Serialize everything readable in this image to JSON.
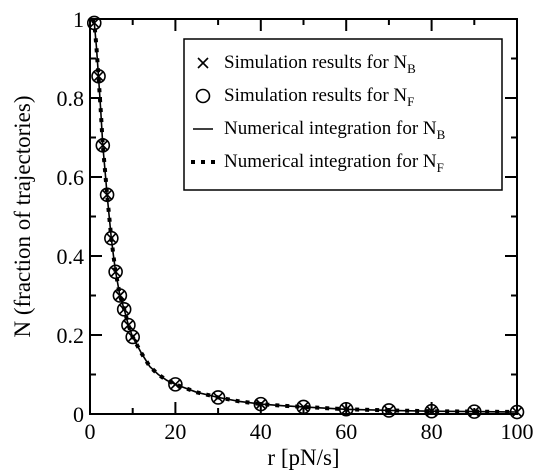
{
  "chart_data": {
    "type": "line",
    "title": "",
    "xlabel": "r [pN/s]",
    "ylabel": "N (fraction of trajectories)",
    "xlim": [
      0,
      100
    ],
    "ylim": [
      0,
      1
    ],
    "x_ticks": [
      0,
      20,
      40,
      60,
      80,
      100
    ],
    "y_ticks": [
      0,
      0.2,
      0.4,
      0.6,
      0.8,
      1
    ],
    "x_tick_labels": [
      "0",
      "20",
      "40",
      "60",
      "80",
      "100"
    ],
    "y_tick_labels": [
      "0",
      "0.2",
      "0.4",
      "0.6",
      "0.8",
      "1"
    ],
    "grid": false,
    "legend_position": "top-right",
    "series": [
      {
        "name": "Simulation results for N",
        "name_subscript": "B",
        "style": "cross-markers",
        "x": [
          1,
          2,
          3,
          4,
          5,
          6,
          7,
          8,
          9,
          10,
          20,
          30,
          40,
          50,
          60,
          70,
          80,
          90,
          100
        ],
        "y": [
          0.99,
          0.855,
          0.68,
          0.555,
          0.445,
          0.36,
          0.3,
          0.265,
          0.225,
          0.195,
          0.075,
          0.042,
          0.025,
          0.018,
          0.012,
          0.009,
          0.007,
          0.006,
          0.005
        ]
      },
      {
        "name": "Simulation results for N",
        "name_subscript": "F",
        "style": "circle-markers",
        "x": [
          1,
          2,
          3,
          4,
          5,
          6,
          7,
          8,
          9,
          10,
          20,
          30,
          40,
          50,
          60,
          70,
          80,
          90,
          100
        ],
        "y": [
          0.99,
          0.855,
          0.68,
          0.555,
          0.445,
          0.36,
          0.3,
          0.265,
          0.225,
          0.195,
          0.075,
          0.042,
          0.025,
          0.018,
          0.012,
          0.009,
          0.007,
          0.006,
          0.005
        ]
      },
      {
        "name": "Numerical integration for N",
        "name_subscript": "B",
        "style": "solid-line",
        "x": [
          0.5,
          1,
          1.5,
          2,
          2.5,
          3,
          3.5,
          4,
          4.5,
          5,
          5.5,
          6,
          7,
          8,
          9,
          10,
          12,
          14,
          16,
          18,
          20,
          25,
          30,
          35,
          40,
          45,
          50,
          60,
          70,
          80,
          90,
          100
        ],
        "y": [
          1.0,
          0.99,
          0.93,
          0.855,
          0.77,
          0.68,
          0.62,
          0.555,
          0.5,
          0.445,
          0.4,
          0.36,
          0.3,
          0.265,
          0.225,
          0.195,
          0.155,
          0.12,
          0.1,
          0.085,
          0.075,
          0.055,
          0.042,
          0.032,
          0.025,
          0.021,
          0.018,
          0.012,
          0.009,
          0.007,
          0.006,
          0.005
        ]
      },
      {
        "name": "Numerical integration for N",
        "name_subscript": "F",
        "style": "dotted-line",
        "x": [
          0.5,
          1,
          1.5,
          2,
          2.5,
          3,
          3.5,
          4,
          4.5,
          5,
          5.5,
          6,
          7,
          8,
          9,
          10,
          12,
          14,
          16,
          18,
          20,
          25,
          30,
          35,
          40,
          45,
          50,
          60,
          70,
          80,
          90,
          100
        ],
        "y": [
          1.0,
          0.99,
          0.93,
          0.855,
          0.77,
          0.68,
          0.62,
          0.555,
          0.5,
          0.445,
          0.4,
          0.36,
          0.3,
          0.265,
          0.225,
          0.195,
          0.155,
          0.12,
          0.1,
          0.085,
          0.075,
          0.055,
          0.042,
          0.032,
          0.025,
          0.021,
          0.018,
          0.012,
          0.009,
          0.007,
          0.006,
          0.005
        ]
      }
    ]
  }
}
